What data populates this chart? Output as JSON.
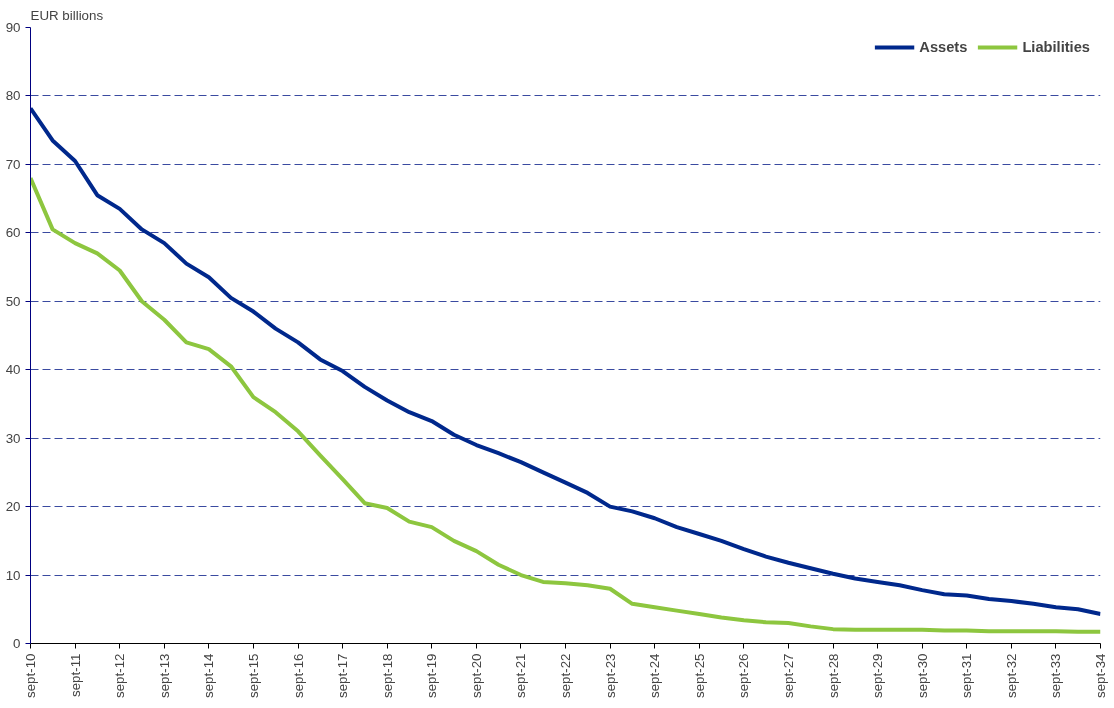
{
  "chart_data": {
    "type": "line",
    "ylabel": "EUR billions",
    "x": [
      "2010-09",
      "2011-03",
      "2011-09",
      "2012-03",
      "2012-09",
      "2013-03",
      "2013-09",
      "2014-03",
      "2014-09",
      "2015-03",
      "2015-09",
      "2016-03",
      "2016-09",
      "2017-03",
      "2017-09",
      "2018-03",
      "2018-09",
      "2019-03",
      "2019-09",
      "2020-03",
      "2020-09",
      "2021-03",
      "2021-09",
      "2022-03",
      "2022-09",
      "2023-03",
      "2023-09",
      "2024-03",
      "2024-09",
      "2025-03",
      "2025-09",
      "2026-03",
      "2026-09",
      "2027-03",
      "2027-09",
      "2028-03",
      "2028-09",
      "2029-03",
      "2029-09",
      "2030-03",
      "2030-09",
      "2031-03",
      "2031-09",
      "2032-03",
      "2032-09",
      "2033-03",
      "2033-09",
      "2034-03",
      "2034-09"
    ],
    "series": [
      {
        "name": "Assets",
        "color": "#00288c",
        "values": [
          78.2,
          73.5,
          70.5,
          65.5,
          63.5,
          60.5,
          58.5,
          55.5,
          53.5,
          50.5,
          48.5,
          46,
          44,
          41.5,
          39.8,
          37.5,
          35.5,
          33.8,
          32.5,
          30.5,
          29,
          27.8,
          26.5,
          25,
          23.5,
          22,
          20,
          19.3,
          18.3,
          17,
          16,
          15,
          13.8,
          12.7,
          11.8,
          11,
          10.2,
          9.5,
          9,
          8.5,
          7.8,
          7.2,
          7,
          6.5,
          6.2,
          5.8,
          5.3,
          5,
          4.3
        ]
      },
      {
        "name": "Liabilities",
        "color": "#8dc63f",
        "values": [
          68,
          60.5,
          58.5,
          57,
          54.5,
          50,
          47.3,
          44,
          43,
          40.5,
          36,
          33.8,
          31,
          27.5,
          24,
          20.5,
          19.8,
          17.8,
          17,
          15,
          13.5,
          11.5,
          10,
          9,
          8.8,
          8.5,
          8,
          5.8,
          5.3,
          4.8,
          4.3,
          3.8,
          3.4,
          3.1,
          3,
          2.5,
          2.1,
          2.0,
          2.0,
          2.0,
          2.0,
          1.9,
          1.9,
          1.8,
          1.8,
          1.8,
          1.8,
          1.7,
          1.7
        ]
      }
    ],
    "xlim": [
      "2010-09",
      "2034-09"
    ],
    "xticks": [
      {
        "value": "2010-09",
        "label": "sept-10"
      },
      {
        "value": "2011-09",
        "label": "sept-11"
      },
      {
        "value": "2012-09",
        "label": "sept-12"
      },
      {
        "value": "2013-09",
        "label": "sept-13"
      },
      {
        "value": "2014-09",
        "label": "sept-14"
      },
      {
        "value": "2015-09",
        "label": "sept-15"
      },
      {
        "value": "2016-09",
        "label": "sept-16"
      },
      {
        "value": "2017-09",
        "label": "sept-17"
      },
      {
        "value": "2018-09",
        "label": "sept-18"
      },
      {
        "value": "2019-09",
        "label": "sept-19"
      },
      {
        "value": "2020-09",
        "label": "sept-20"
      },
      {
        "value": "2021-09",
        "label": "sept-21"
      },
      {
        "value": "2022-09",
        "label": "sept-22"
      },
      {
        "value": "2023-09",
        "label": "sept-23"
      },
      {
        "value": "2024-09",
        "label": "sept-24"
      },
      {
        "value": "2025-09",
        "label": "sept-25"
      },
      {
        "value": "2026-09",
        "label": "sept-26"
      },
      {
        "value": "2027-09",
        "label": "sept-27"
      },
      {
        "value": "2028-09",
        "label": "sept-28"
      },
      {
        "value": "2029-09",
        "label": "sept-29"
      },
      {
        "value": "2030-09",
        "label": "sept-30"
      },
      {
        "value": "2031-09",
        "label": "sept-31"
      },
      {
        "value": "2032-09",
        "label": "sept-32"
      },
      {
        "value": "2033-09",
        "label": "sept-33"
      },
      {
        "value": "2034-09",
        "label": "sept-34"
      }
    ],
    "ylim": [
      0,
      90
    ],
    "yticks": [
      0,
      10,
      20,
      30,
      40,
      50,
      60,
      70,
      80,
      90
    ],
    "grid": "y",
    "legend": "top right",
    "line_style": "solid",
    "marker": "none"
  }
}
